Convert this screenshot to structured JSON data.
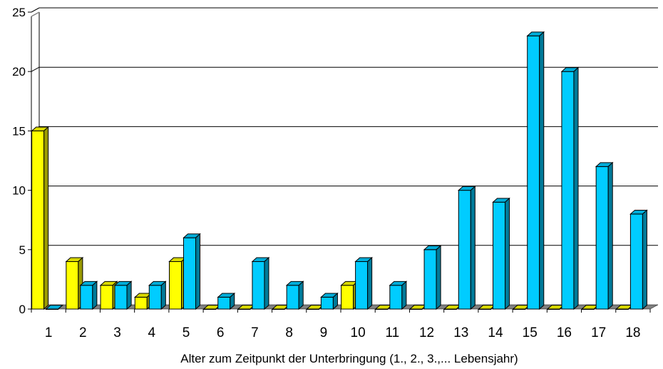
{
  "chart_data": {
    "type": "bar",
    "title": "",
    "xlabel": "Alter zum Zeitpunkt der Unterbringung    (1., 2., 3.,... Lebensjahr)",
    "ylabel": "",
    "ylim": [
      0,
      25
    ],
    "yticks": [
      0,
      5,
      10,
      15,
      20,
      25
    ],
    "grid": true,
    "legend": "none",
    "style": "3d",
    "categories": [
      "1",
      "2",
      "3",
      "4",
      "5",
      "6",
      "7",
      "8",
      "9",
      "10",
      "11",
      "12",
      "13",
      "14",
      "15",
      "16",
      "17",
      "18"
    ],
    "series": [
      {
        "color": "#ffff00",
        "values": [
          15,
          4,
          2,
          1,
          4,
          0,
          0,
          0,
          0,
          2,
          0,
          0,
          0,
          0,
          0,
          0,
          0,
          0
        ]
      },
      {
        "color": "#00ccff",
        "values": [
          0,
          2,
          2,
          2,
          6,
          1,
          4,
          2,
          1,
          4,
          2,
          5,
          10,
          9,
          23,
          20,
          12,
          8
        ]
      }
    ],
    "colors": {
      "grid": "#000000",
      "wall": "#808080",
      "floor": "#808080"
    }
  }
}
